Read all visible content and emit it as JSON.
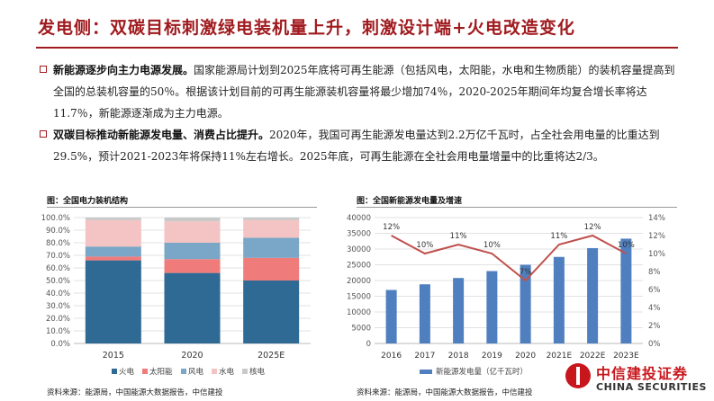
{
  "header": {
    "title": "发电侧：双碳目标刺激绿电装机量上升，刺激设计端+火电改造变化"
  },
  "bullets": [
    {
      "heading": "新能源逐步向主力电源发展。",
      "text": "国家能源局计划到2025年底将可再生能源（包括风电，太阳能，水电和生物质能）的装机容量提高到全国的总装机容量的50％。根据该计划目前的可再生能源装机容量将最少增加74％，2020-2025年期间年均复合增长率将达11.7％，新能源逐渐成为主力电源。"
    },
    {
      "heading": "双碳目标推动新能源发电量、消费占比提升。",
      "text": "2020年，我国可再生能源发电量达到2.2万亿千瓦时，占全社会用电量的比重达到29.5%，预计2021-2023年将保持11%左右增长。2025年底，可再生能源在全社会用电量增量中的比重将达2/3。"
    }
  ],
  "colors": {
    "accent": "#a01a1e",
    "thermal": "#2f6a95",
    "solar": "#ef7b7b",
    "wind": "#7aa7c7",
    "hydro": "#f4c3c3",
    "nuclear": "#c9c9c9",
    "bar": "#4f7fbf",
    "line": "#c0504d"
  },
  "chart_data": [
    {
      "type": "bar",
      "stacked": true,
      "title": "图：全国电力装机结构",
      "categories": [
        "2015",
        "2020",
        "2025E"
      ],
      "y_ticks": [
        "0.0%",
        "10.0%",
        "20.0%",
        "30.0%",
        "40.0%",
        "50.0%",
        "60.0%",
        "70.0%",
        "80.0%",
        "90.0%",
        "100.0%"
      ],
      "ylim": [
        0,
        100
      ],
      "series": [
        {
          "name": "火电",
          "values": [
            66,
            56,
            50
          ],
          "color": "#2f6a95"
        },
        {
          "name": "太阳能",
          "values": [
            3,
            11,
            18
          ],
          "color": "#ef7b7b"
        },
        {
          "name": "风电",
          "values": [
            8,
            13,
            16
          ],
          "color": "#7aa7c7"
        },
        {
          "name": "水电",
          "values": [
            21,
            17,
            14
          ],
          "color": "#f4c3c3"
        },
        {
          "name": "核电",
          "values": [
            2,
            3,
            2
          ],
          "color": "#c9c9c9"
        }
      ],
      "legend_position": "bottom",
      "source": "资料来源：能源局，中国能源大数据报告，中信建投"
    },
    {
      "type": "bar+line",
      "title": "图：全国新能源发电量及增速",
      "categories": [
        "2016",
        "2017",
        "2018",
        "2019",
        "2020",
        "2021E",
        "2022E",
        "2023E"
      ],
      "bar_series": {
        "name": "新能源发电量（亿千瓦时）",
        "values": [
          17000,
          18800,
          20800,
          23000,
          25000,
          27500,
          30300,
          33300
        ]
      },
      "line_series": {
        "values": [
          12,
          10,
          11,
          10,
          7,
          11,
          12,
          10
        ],
        "labels": [
          "12%",
          "10%",
          "11%",
          "10%",
          "7%",
          "11%",
          "12%",
          "10%"
        ]
      },
      "y_ticks_left": [
        "0",
        "5000",
        "10000",
        "15000",
        "20000",
        "25000",
        "30000",
        "35000",
        "40000"
      ],
      "y_ticks_right": [
        "0%",
        "2%",
        "4%",
        "6%",
        "8%",
        "10%",
        "12%",
        "14%"
      ],
      "ylim_left": [
        0,
        40000
      ],
      "ylim_right": [
        0,
        14
      ],
      "legend_position": "bottom",
      "source": "资料来源：能源局，中国能源大数据报告，中信建投"
    }
  ],
  "logo": {
    "cn": "中信建投证券",
    "en": "CHINA SECURITIES"
  }
}
